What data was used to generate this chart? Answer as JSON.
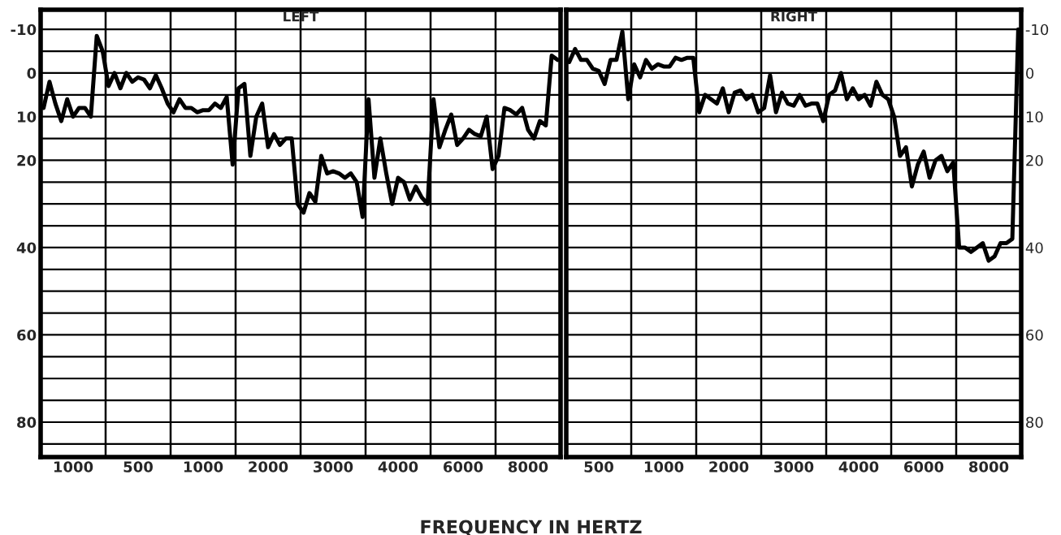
{
  "chart_data": [
    {
      "type": "line",
      "title": "LEFT",
      "xlabel": "FREQUENCY IN HERTZ",
      "grid": true,
      "line_style": "solid",
      "ylim": [
        88,
        -14.5
      ],
      "categories": [
        null,
        null,
        null,
        null,
        null,
        "1000",
        null,
        null,
        null,
        null,
        null,
        null,
        null,
        null,
        null,
        null,
        "500",
        null,
        null,
        null,
        null,
        null,
        null,
        null,
        null,
        null,
        null,
        "1000",
        null,
        null,
        null,
        null,
        null,
        null,
        null,
        null,
        null,
        null,
        "2000",
        null,
        null,
        null,
        null,
        null,
        null,
        null,
        null,
        null,
        null,
        "3000",
        null,
        null,
        null,
        null,
        null,
        null,
        null,
        null,
        null,
        null,
        "4000",
        null,
        null,
        null,
        null,
        null,
        null,
        null,
        null,
        null,
        null,
        "6000",
        null,
        null,
        null,
        null,
        null,
        null,
        null,
        null,
        null,
        null,
        "8000",
        null,
        null,
        null,
        null,
        null
      ],
      "yticks": [
        -10,
        {
          "value": -5,
          "label": null
        },
        0,
        {
          "value": 5,
          "label": null
        },
        10,
        {
          "value": 15,
          "label": null
        },
        20,
        {
          "value": 25,
          "label": null
        },
        {
          "value": 30,
          "label": null
        },
        {
          "value": 35,
          "label": null
        },
        40,
        {
          "value": 45,
          "label": null
        },
        {
          "value": 50,
          "label": null
        },
        {
          "value": 55,
          "label": null
        },
        60,
        {
          "value": 65,
          "label": null
        },
        {
          "value": 70,
          "label": null
        },
        {
          "value": 75,
          "label": null
        },
        80,
        {
          "value": 85,
          "label": null
        }
      ],
      "series": [
        {
          "color": "#000000",
          "values": [
            8,
            2,
            7,
            11,
            6,
            10,
            8,
            8,
            10,
            -8.5,
            -5,
            3,
            0,
            3.5,
            0,
            2,
            1,
            1.5,
            3.5,
            0.5,
            3.5,
            7,
            9,
            6,
            8,
            8,
            9,
            8.5,
            8.5,
            7,
            8,
            5.5,
            21,
            3.5,
            2.5,
            19,
            10,
            7,
            17,
            14,
            16.5,
            15,
            15,
            30,
            32,
            27.5,
            29.5,
            19,
            23,
            22.5,
            23,
            24,
            23,
            25,
            33,
            6,
            24,
            15,
            23,
            30,
            24,
            25,
            29,
            26,
            28.5,
            30,
            6,
            17,
            13,
            9.5,
            16.5,
            15,
            13,
            14,
            14.5,
            10,
            22,
            19,
            8,
            8.5,
            9.5,
            8,
            13,
            15,
            11,
            12,
            -4,
            -3
          ]
        }
      ]
    },
    {
      "type": "line",
      "title": "RIGHT",
      "grid": true,
      "line_style": "solid",
      "ylim": [
        88,
        -14.5
      ],
      "categories": [
        null,
        null,
        null,
        null,
        null,
        "500",
        null,
        null,
        null,
        null,
        null,
        null,
        null,
        null,
        null,
        null,
        "1000",
        null,
        null,
        null,
        null,
        null,
        null,
        null,
        null,
        null,
        null,
        "2000",
        null,
        null,
        null,
        null,
        null,
        null,
        null,
        null,
        null,
        null,
        "3000",
        null,
        null,
        null,
        null,
        null,
        null,
        null,
        null,
        null,
        null,
        "4000",
        null,
        null,
        null,
        null,
        null,
        null,
        null,
        null,
        null,
        null,
        "6000",
        null,
        null,
        null,
        null,
        null,
        null,
        null,
        null,
        null,
        null,
        "8000",
        null,
        null,
        null,
        null,
        null
      ],
      "yticks": [
        -10,
        {
          "value": -5,
          "label": null
        },
        0,
        {
          "value": 5,
          "label": null
        },
        10,
        {
          "value": 15,
          "label": null
        },
        20,
        {
          "value": 25,
          "label": null
        },
        {
          "value": 30,
          "label": null
        },
        {
          "value": 35,
          "label": null
        },
        40,
        {
          "value": 45,
          "label": null
        },
        {
          "value": 50,
          "label": null
        },
        {
          "value": 55,
          "label": null
        },
        60,
        {
          "value": 65,
          "label": null
        },
        {
          "value": 70,
          "label": null
        },
        {
          "value": 75,
          "label": null
        },
        80,
        {
          "value": 85,
          "label": null
        }
      ],
      "series": [
        {
          "color": "#000000",
          "values": [
            -2.5,
            -5.5,
            -3,
            -3,
            -1,
            -0.5,
            2.5,
            -3,
            -3,
            -9.5,
            6,
            -2,
            1,
            -3,
            -1,
            -2,
            -1.5,
            -1.5,
            -3.5,
            -3,
            -3.5,
            -3.5,
            9,
            5,
            6,
            7,
            3.5,
            9,
            4.5,
            4,
            6,
            5,
            9,
            8,
            0.5,
            9,
            4.5,
            7,
            7.5,
            5,
            7.5,
            7,
            7,
            11,
            5,
            4,
            0,
            6,
            3.5,
            6,
            5,
            7.5,
            2,
            5,
            6,
            10,
            19,
            17,
            26,
            21,
            18,
            24,
            20,
            19,
            22.5,
            20.5,
            40,
            40,
            41,
            40,
            39,
            43,
            42,
            39,
            39,
            38,
            -10
          ]
        }
      ]
    }
  ]
}
